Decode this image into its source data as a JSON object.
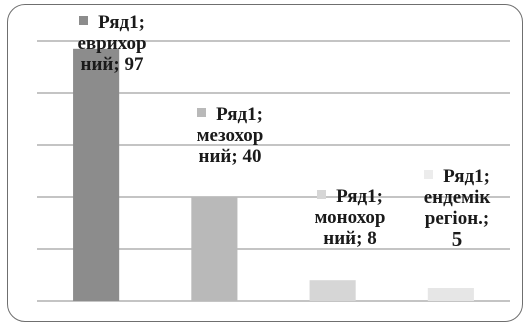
{
  "chart_data": {
    "type": "bar",
    "series_name": "Ряд1",
    "categories": [
      "еврихорний",
      "мезохорний",
      "монохорний",
      "ендемік регіон."
    ],
    "values": [
      97,
      40,
      8,
      5
    ],
    "colors": [
      "#8c8c8c",
      "#b9b9b9",
      "#d6d6d6",
      "#e6e6e6"
    ],
    "ylim": [
      0,
      100
    ],
    "grid": true,
    "legend": "none",
    "labels": [
      {
        "series": "Ряд1;",
        "category_lines": [
          "еврихор",
          "ний; 97"
        ]
      },
      {
        "series": "Ряд1;",
        "category_lines": [
          "мезохор",
          "ний; 40"
        ]
      },
      {
        "series": "Ряд1;",
        "category_lines": [
          "монохор",
          "ний; 8"
        ]
      },
      {
        "series": "Ряд1;",
        "category_lines": [
          "ендемік",
          "регіон.;",
          "5"
        ]
      }
    ]
  }
}
